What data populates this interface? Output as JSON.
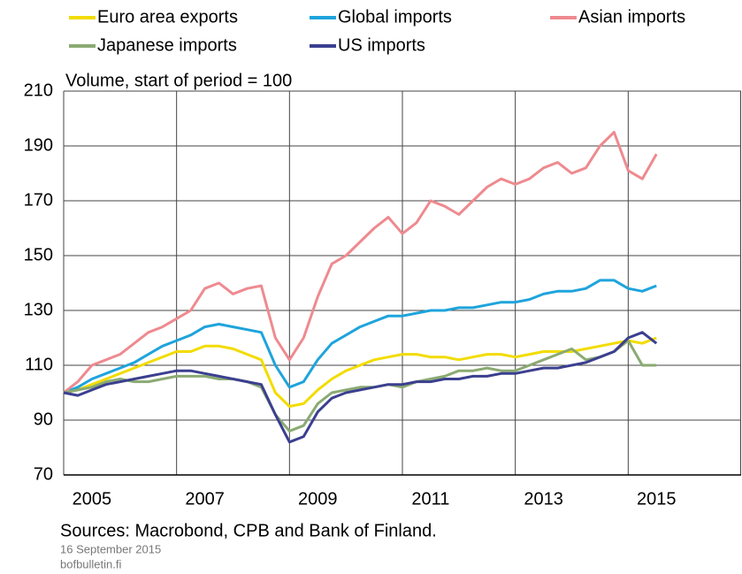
{
  "chart_data": {
    "type": "line",
    "subtitle": "Volume, start of period = 100",
    "source": "Sources: Macrobond, CPB and Bank of Finland.",
    "date": "16 September 2015",
    "site": "bofbulletin.fi",
    "xlim": [
      2005,
      2017
    ],
    "ylim": [
      70,
      210
    ],
    "yticks": [
      70,
      90,
      110,
      130,
      150,
      170,
      190,
      210
    ],
    "xticks": [
      {
        "value": 2005.5,
        "label": "2005"
      },
      {
        "value": 2007.5,
        "label": "2007"
      },
      {
        "value": 2009.5,
        "label": "2009"
      },
      {
        "value": 2011.5,
        "label": "2011"
      },
      {
        "value": 2013.5,
        "label": "2013"
      },
      {
        "value": 2015.5,
        "label": "2015"
      }
    ],
    "xgrid": [
      2007,
      2009,
      2011,
      2013,
      2015
    ],
    "grid": true,
    "x": [
      2005.0,
      2005.25,
      2005.5,
      2005.75,
      2006.0,
      2006.25,
      2006.5,
      2006.75,
      2007.0,
      2007.25,
      2007.5,
      2007.75,
      2008.0,
      2008.25,
      2008.5,
      2008.75,
      2009.0,
      2009.25,
      2009.5,
      2009.75,
      2010.0,
      2010.25,
      2010.5,
      2010.75,
      2011.0,
      2011.25,
      2011.5,
      2011.75,
      2012.0,
      2012.25,
      2012.5,
      2012.75,
      2013.0,
      2013.25,
      2013.5,
      2013.75,
      2014.0,
      2014.25,
      2014.5,
      2014.75,
      2015.0,
      2015.25,
      2015.5
    ],
    "series": [
      {
        "name": "Euro area exports",
        "color": "#f2dc00",
        "values": [
          100,
          101,
          103,
          105,
          107,
          109,
          111,
          113,
          115,
          115,
          117,
          117,
          116,
          114,
          112,
          100,
          95,
          96,
          101,
          105,
          108,
          110,
          112,
          113,
          114,
          114,
          113,
          113,
          112,
          113,
          114,
          114,
          113,
          114,
          115,
          115,
          115,
          116,
          117,
          118,
          119,
          118,
          120
        ]
      },
      {
        "name": "Global imports",
        "color": "#1ea4dc",
        "values": [
          100,
          102,
          105,
          107,
          109,
          111,
          114,
          117,
          119,
          121,
          124,
          125,
          124,
          123,
          122,
          110,
          102,
          104,
          112,
          118,
          121,
          124,
          126,
          128,
          128,
          129,
          130,
          130,
          131,
          131,
          132,
          133,
          133,
          134,
          136,
          137,
          137,
          138,
          141,
          141,
          138,
          137,
          139
        ]
      },
      {
        "name": "Asian imports",
        "color": "#ee8a8f",
        "values": [
          100,
          104,
          110,
          112,
          114,
          118,
          122,
          124,
          127,
          130,
          138,
          140,
          136,
          138,
          139,
          120,
          112,
          120,
          135,
          147,
          150,
          155,
          160,
          164,
          158,
          162,
          170,
          168,
          165,
          170,
          175,
          178,
          176,
          178,
          182,
          184,
          180,
          182,
          190,
          195,
          181,
          178,
          187
        ]
      },
      {
        "name": "Japanese imports",
        "color": "#8aaa72",
        "values": [
          100,
          101,
          102,
          104,
          105,
          104,
          104,
          105,
          106,
          106,
          106,
          105,
          105,
          104,
          102,
          92,
          86,
          88,
          96,
          100,
          101,
          102,
          102,
          103,
          102,
          104,
          105,
          106,
          108,
          108,
          109,
          108,
          108,
          110,
          112,
          114,
          116,
          112,
          113,
          115,
          119,
          110,
          110
        ]
      },
      {
        "name": "US imports",
        "color": "#3b3f8f",
        "values": [
          100,
          99,
          101,
          103,
          104,
          105,
          106,
          107,
          108,
          108,
          107,
          106,
          105,
          104,
          103,
          92,
          82,
          84,
          93,
          98,
          100,
          101,
          102,
          103,
          103,
          104,
          104,
          105,
          105,
          106,
          106,
          107,
          107,
          108,
          109,
          109,
          110,
          111,
          113,
          115,
          120,
          122,
          118
        ]
      }
    ]
  }
}
